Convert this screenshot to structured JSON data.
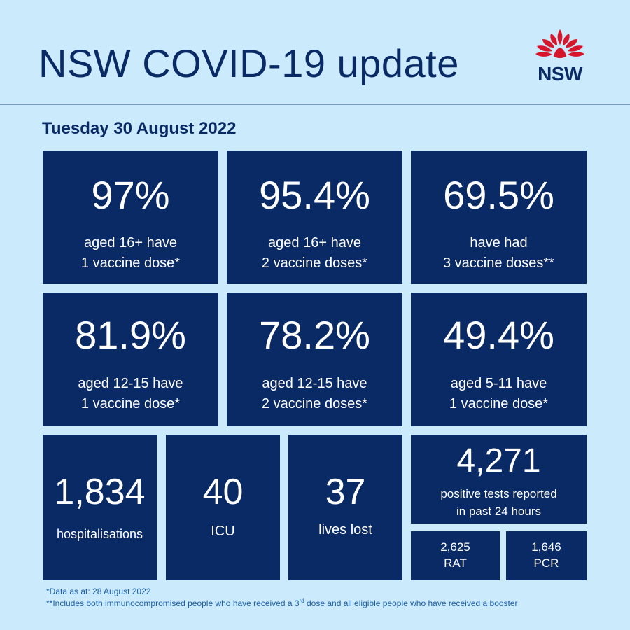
{
  "header": {
    "title": "NSW COVID-19 update",
    "logo_text": "NSW"
  },
  "date": "Tuesday 30 August 2022",
  "tiles": {
    "vax16_dose1": {
      "value": "97%",
      "line1": "aged 16+ have",
      "line2": "1 vaccine dose*"
    },
    "vax16_dose2": {
      "value": "95.4%",
      "line1": "aged 16+ have",
      "line2": "2 vaccine doses*"
    },
    "vax_dose3": {
      "value": "69.5%",
      "line1": "have had",
      "line2": "3 vaccine doses**"
    },
    "vax12_dose1": {
      "value": "81.9%",
      "line1": "aged 12-15 have",
      "line2": "1 vaccine dose*"
    },
    "vax12_dose2": {
      "value": "78.2%",
      "line1": "aged 12-15 have",
      "line2": "2 vaccine doses*"
    },
    "vax5_dose1": {
      "value": "49.4%",
      "line1": "aged 5-11 have",
      "line2": "1 vaccine dose*"
    },
    "hospitalisations": {
      "value": "1,834",
      "label": "hospitalisations"
    },
    "icu": {
      "value": "40",
      "label": "ICU"
    },
    "lives_lost": {
      "value": "37",
      "label": "lives lost"
    },
    "positive_tests": {
      "value": "4,271",
      "line1": "positive tests reported",
      "line2": "in past 24 hours"
    },
    "rat": {
      "value": "2,625",
      "label": "RAT"
    },
    "pcr": {
      "value": "1,646",
      "label": "PCR"
    }
  },
  "footnotes": {
    "note1": "*Data as at: 28 August 2022",
    "note2_before": "**Includes both immunocompromised  people who have received a 3",
    "note2_sup": "rd",
    "note2_after": " dose and all eligible people who have received a booster"
  },
  "colors": {
    "background": "#cbeafb",
    "tile": "#0a2a66",
    "title": "#0a2a66",
    "waratah_red": "#d7152a",
    "footnote": "#1a5fa8"
  }
}
